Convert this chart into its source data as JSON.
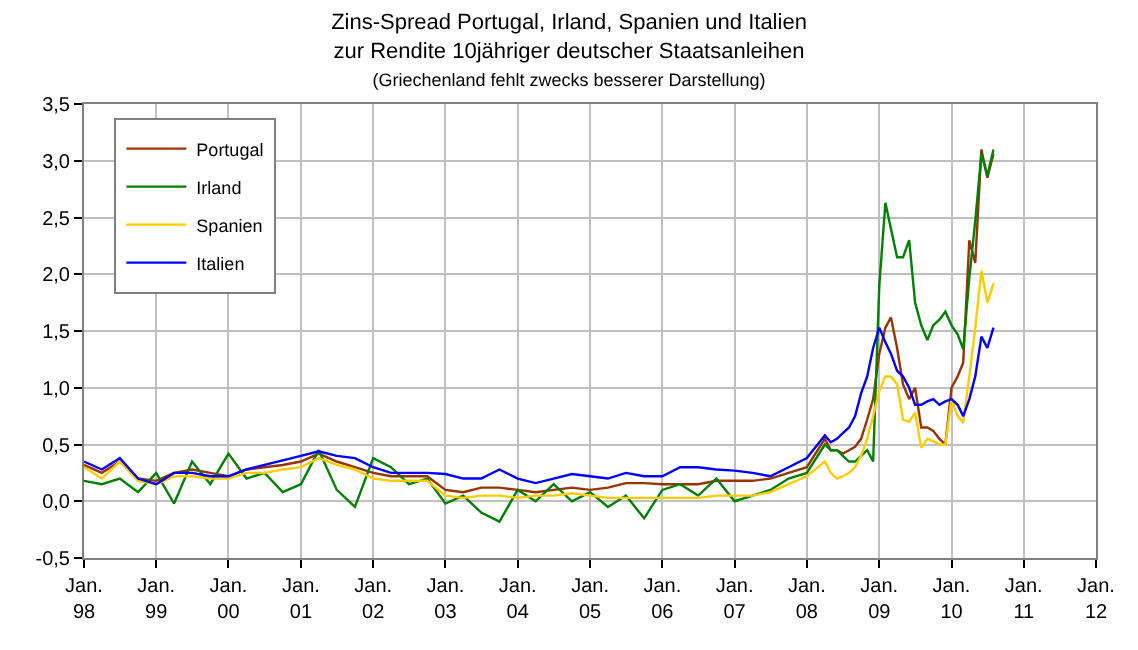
{
  "chart_data": {
    "type": "line",
    "title": "Zins-Spread Portugal, Irland, Spanien und Italien\nzur Rendite 10jähriger deutscher Staatsanleihen",
    "subtitle": "(Griechenland fehlt zwecks besserer Darstellung)",
    "x": [
      "1998-01",
      "1998-04",
      "1998-07",
      "1998-10",
      "1999-01",
      "1999-04",
      "1999-07",
      "1999-10",
      "2000-01",
      "2000-04",
      "2000-07",
      "2000-10",
      "2001-01",
      "2001-04",
      "2001-07",
      "2001-10",
      "2002-01",
      "2002-04",
      "2002-07",
      "2002-10",
      "2003-01",
      "2003-04",
      "2003-07",
      "2003-10",
      "2004-01",
      "2004-04",
      "2004-07",
      "2004-10",
      "2005-01",
      "2005-04",
      "2005-07",
      "2005-10",
      "2006-01",
      "2006-04",
      "2006-07",
      "2006-10",
      "2007-01",
      "2007-04",
      "2007-07",
      "2007-10",
      "2008-01",
      "2008-04",
      "2008-05",
      "2008-06",
      "2008-07",
      "2008-08",
      "2008-09",
      "2008-10",
      "2008-11",
      "2008-12",
      "2009-01",
      "2009-02",
      "2009-03",
      "2009-04",
      "2009-05",
      "2009-06",
      "2009-07",
      "2009-08",
      "2009-09",
      "2009-10",
      "2009-11",
      "2009-12",
      "2010-01",
      "2010-02",
      "2010-03",
      "2010-04",
      "2010-05",
      "2010-06",
      "2010-07",
      "2010-08"
    ],
    "series": [
      {
        "name": "Portugal",
        "color": "#993300",
        "values": [
          0.32,
          0.25,
          0.35,
          0.2,
          0.18,
          0.25,
          0.28,
          0.25,
          0.22,
          0.28,
          0.3,
          0.32,
          0.35,
          0.42,
          0.35,
          0.3,
          0.25,
          0.22,
          0.22,
          0.22,
          0.1,
          0.08,
          0.12,
          0.12,
          0.1,
          0.08,
          0.1,
          0.12,
          0.1,
          0.12,
          0.16,
          0.16,
          0.15,
          0.15,
          0.15,
          0.18,
          0.18,
          0.18,
          0.2,
          0.25,
          0.3,
          0.55,
          0.45,
          0.45,
          0.42,
          0.45,
          0.48,
          0.55,
          0.72,
          0.9,
          1.3,
          1.53,
          1.62,
          1.35,
          1.03,
          0.9,
          1.0,
          0.65,
          0.65,
          0.62,
          0.55,
          0.5,
          1.0,
          1.1,
          1.22,
          2.3,
          2.1,
          3.1,
          2.85,
          3.06
        ]
      },
      {
        "name": "Irland",
        "color": "#008000",
        "values": [
          0.18,
          0.15,
          0.2,
          0.08,
          0.25,
          -0.02,
          0.35,
          0.15,
          0.42,
          0.2,
          0.25,
          0.08,
          0.15,
          0.45,
          0.1,
          -0.05,
          0.38,
          0.3,
          0.15,
          0.2,
          -0.02,
          0.05,
          -0.1,
          -0.18,
          0.1,
          0.0,
          0.15,
          0.0,
          0.08,
          -0.05,
          0.05,
          -0.15,
          0.1,
          0.15,
          0.05,
          0.2,
          0.0,
          0.05,
          0.1,
          0.2,
          0.25,
          0.5,
          0.45,
          0.45,
          0.4,
          0.35,
          0.35,
          0.4,
          0.45,
          0.35,
          1.9,
          2.63,
          2.4,
          2.15,
          2.15,
          2.3,
          1.75,
          1.55,
          1.42,
          1.55,
          1.6,
          1.67,
          1.55,
          1.47,
          1.34,
          1.97,
          2.47,
          3.06,
          2.87,
          3.1
        ]
      },
      {
        "name": "Spanien",
        "color": "#ffcc00",
        "values": [
          0.3,
          0.2,
          0.35,
          0.18,
          0.15,
          0.22,
          0.22,
          0.2,
          0.2,
          0.25,
          0.25,
          0.28,
          0.3,
          0.38,
          0.32,
          0.28,
          0.2,
          0.18,
          0.18,
          0.18,
          0.05,
          0.03,
          0.05,
          0.05,
          0.03,
          0.05,
          0.05,
          0.07,
          0.05,
          0.03,
          0.03,
          0.03,
          0.03,
          0.03,
          0.03,
          0.05,
          0.05,
          0.05,
          0.08,
          0.15,
          0.22,
          0.35,
          0.25,
          0.2,
          0.22,
          0.25,
          0.3,
          0.4,
          0.55,
          0.75,
          0.97,
          1.1,
          1.1,
          1.03,
          0.72,
          0.7,
          0.78,
          0.47,
          0.55,
          0.53,
          0.5,
          0.5,
          0.9,
          0.75,
          0.69,
          1.1,
          1.53,
          2.03,
          1.75,
          1.92
        ]
      },
      {
        "name": "Italien",
        "color": "#0000ff",
        "values": [
          0.35,
          0.28,
          0.38,
          0.2,
          0.15,
          0.25,
          0.25,
          0.22,
          0.22,
          0.28,
          0.32,
          0.36,
          0.4,
          0.44,
          0.4,
          0.38,
          0.3,
          0.25,
          0.25,
          0.25,
          0.24,
          0.2,
          0.2,
          0.28,
          0.2,
          0.16,
          0.2,
          0.24,
          0.22,
          0.2,
          0.25,
          0.22,
          0.22,
          0.3,
          0.3,
          0.28,
          0.27,
          0.25,
          0.22,
          0.3,
          0.38,
          0.58,
          0.52,
          0.55,
          0.6,
          0.65,
          0.75,
          0.95,
          1.1,
          1.35,
          1.53,
          1.4,
          1.3,
          1.15,
          1.1,
          1.0,
          0.85,
          0.85,
          0.88,
          0.9,
          0.85,
          0.88,
          0.9,
          0.85,
          0.75,
          0.9,
          1.1,
          1.45,
          1.35,
          1.53
        ]
      }
    ],
    "xlim": [
      "1998-01",
      "2012-01"
    ],
    "xticks": [
      {
        "value": "1998-01",
        "label": "Jan.\n98"
      },
      {
        "value": "1999-01",
        "label": "Jan.\n99"
      },
      {
        "value": "2000-01",
        "label": "Jan.\n00"
      },
      {
        "value": "2001-01",
        "label": "Jan.\n01"
      },
      {
        "value": "2002-01",
        "label": "Jan.\n02"
      },
      {
        "value": "2003-01",
        "label": "Jan.\n03"
      },
      {
        "value": "2004-01",
        "label": "Jan.\n04"
      },
      {
        "value": "2005-01",
        "label": "Jan.\n05"
      },
      {
        "value": "2006-01",
        "label": "Jan.\n06"
      },
      {
        "value": "2007-01",
        "label": "Jan.\n07"
      },
      {
        "value": "2008-01",
        "label": "Jan.\n08"
      },
      {
        "value": "2009-01",
        "label": "Jan.\n09"
      },
      {
        "value": "2010-01",
        "label": "Jan.\n10"
      },
      {
        "value": "2011-01",
        "label": "Jan.\n11"
      },
      {
        "value": "2012-01",
        "label": "Jan.\n12"
      }
    ],
    "ylim": [
      -0.5,
      3.5
    ],
    "yticks": [
      {
        "value": -0.5,
        "label": "-0,5"
      },
      {
        "value": 0,
        "label": "0,0"
      },
      {
        "value": 0.5,
        "label": "0,5"
      },
      {
        "value": 1,
        "label": "1,0"
      },
      {
        "value": 1.5,
        "label": "1,5"
      },
      {
        "value": 2,
        "label": "2,0"
      },
      {
        "value": 2.5,
        "label": "2,5"
      },
      {
        "value": 3,
        "label": "3,0"
      },
      {
        "value": 3.5,
        "label": "3,5"
      }
    ],
    "grid": true,
    "legend": "top left",
    "line_style": "solid",
    "marker": "none"
  }
}
